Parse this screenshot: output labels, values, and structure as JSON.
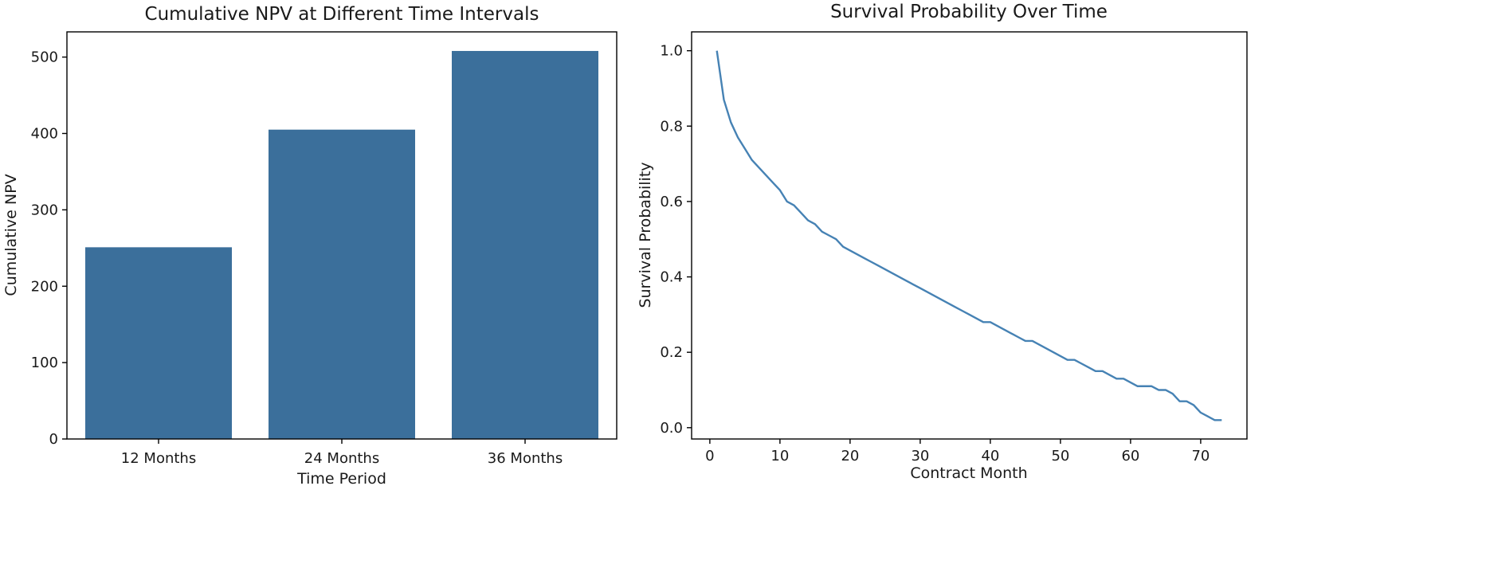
{
  "chart_data": [
    {
      "type": "bar",
      "title": "Cumulative NPV at Different Time Intervals",
      "xlabel": "Time Period",
      "ylabel": "Cumulative NPV",
      "categories": [
        "12 Months",
        "24 Months",
        "36 Months"
      ],
      "values": [
        251,
        405,
        508
      ],
      "ylim": [
        0,
        533
      ],
      "yticks": [
        0,
        100,
        200,
        300,
        400,
        500
      ],
      "color": "#3b6f9b",
      "grid": false
    },
    {
      "type": "line",
      "title": "Survival Probability Over Time",
      "xlabel": "Contract Month",
      "ylabel": "Survival Probability",
      "x": [
        1,
        2,
        3,
        4,
        5,
        6,
        7,
        8,
        9,
        10,
        11,
        12,
        13,
        14,
        15,
        16,
        17,
        18,
        19,
        20,
        21,
        22,
        23,
        24,
        25,
        26,
        27,
        28,
        29,
        30,
        31,
        32,
        33,
        34,
        35,
        36,
        37,
        38,
        39,
        40,
        41,
        42,
        43,
        44,
        45,
        46,
        47,
        48,
        49,
        50,
        51,
        52,
        53,
        54,
        55,
        56,
        57,
        58,
        59,
        60,
        61,
        62,
        63,
        64,
        65,
        66,
        67,
        68,
        69,
        70,
        71,
        72,
        73
      ],
      "y": [
        1.0,
        0.87,
        0.81,
        0.77,
        0.74,
        0.71,
        0.69,
        0.67,
        0.65,
        0.63,
        0.6,
        0.59,
        0.57,
        0.55,
        0.54,
        0.52,
        0.51,
        0.5,
        0.48,
        0.47,
        0.46,
        0.45,
        0.44,
        0.43,
        0.42,
        0.41,
        0.4,
        0.39,
        0.38,
        0.37,
        0.36,
        0.35,
        0.34,
        0.33,
        0.32,
        0.31,
        0.3,
        0.29,
        0.28,
        0.28,
        0.27,
        0.26,
        0.25,
        0.24,
        0.23,
        0.23,
        0.22,
        0.21,
        0.2,
        0.19,
        0.18,
        0.18,
        0.17,
        0.16,
        0.15,
        0.15,
        0.14,
        0.13,
        0.13,
        0.12,
        0.11,
        0.11,
        0.11,
        0.1,
        0.1,
        0.09,
        0.07,
        0.07,
        0.06,
        0.04,
        0.03,
        0.02,
        0.02
      ],
      "xlim": [
        -2.6,
        76.6
      ],
      "ylim": [
        -0.03,
        1.05
      ],
      "xticks": [
        0,
        10,
        20,
        30,
        40,
        50,
        60,
        70
      ],
      "yticks": [
        0.0,
        0.2,
        0.4,
        0.6,
        0.8,
        1.0
      ],
      "ytick_labels": [
        "0.0",
        "0.2",
        "0.4",
        "0.6",
        "0.8",
        "1.0"
      ],
      "color": "#4682b4",
      "grid": false
    }
  ]
}
